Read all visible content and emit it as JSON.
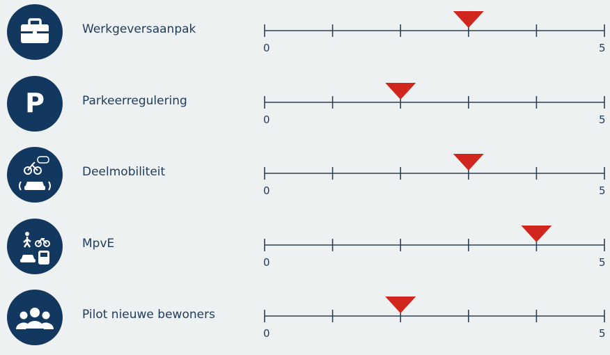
{
  "colors": {
    "icon_bg": "#13385f",
    "axis": "#2b3f55",
    "marker": "#d0261e",
    "text": "#1f3b5a",
    "background": "#eef1f1"
  },
  "chart_data": {
    "type": "scatter",
    "title": "",
    "xlim": [
      0,
      5
    ],
    "ticks": [
      0,
      1,
      2,
      3,
      4,
      5
    ],
    "tick_labels": {
      "min": "0",
      "max": "5"
    },
    "marker": "inverted-triangle",
    "rows": [
      {
        "label": "Werkgeversaanpak",
        "value": 3,
        "icon": "briefcase-icon"
      },
      {
        "label": "Parkeerregulering",
        "value": 2,
        "icon": "parking-icon"
      },
      {
        "label": "Deelmobiliteit",
        "value": 3,
        "icon": "shared-mobility-icon"
      },
      {
        "label": "MpvE",
        "value": 4,
        "icon": "transport-modes-icon"
      },
      {
        "label": "Pilot nieuwe bewoners",
        "value": 2,
        "icon": "people-group-icon"
      }
    ]
  }
}
